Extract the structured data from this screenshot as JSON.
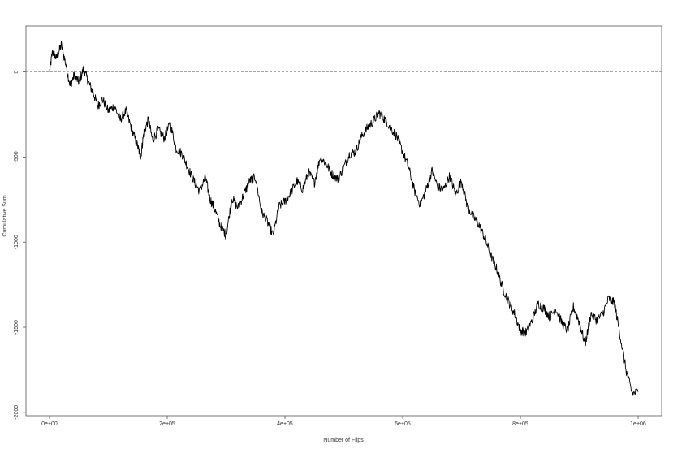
{
  "chart_data": {
    "type": "line",
    "title": "",
    "xlabel": "Number of Flips",
    "ylabel": "Cumulative Sum",
    "xlim": [
      -40000,
      1040000
    ],
    "ylim": [
      -2020,
      270
    ],
    "x_ticks": [
      0,
      200000,
      400000,
      600000,
      800000,
      1000000
    ],
    "x_tick_labels": [
      "0e+00",
      "2e+05",
      "4e+05",
      "6e+05",
      "8e+05",
      "1e+06"
    ],
    "y_ticks": [
      0,
      -500,
      -1000,
      -1500,
      -2000
    ],
    "y_tick_labels": [
      "0",
      "-500",
      "-1000",
      "-1500",
      "-2000"
    ],
    "reference_line": {
      "y": 0,
      "style": "dashed",
      "color": "#888888"
    },
    "grid": false,
    "line_color": "#000000",
    "series": [
      {
        "name": "",
        "x": [
          0,
          5000,
          12000,
          20000,
          28000,
          35000,
          42000,
          50000,
          58000,
          66000,
          74000,
          82000,
          90000,
          100000,
          110000,
          120000,
          130000,
          140000,
          150000,
          155000,
          160000,
          168000,
          175000,
          185000,
          195000,
          205000,
          215000,
          225000,
          235000,
          245000,
          255000,
          265000,
          272000,
          280000,
          290000,
          300000,
          310000,
          320000,
          330000,
          340000,
          350000,
          360000,
          370000,
          380000,
          390000,
          400000,
          410000,
          420000,
          430000,
          440000,
          450000,
          460000,
          470000,
          480000,
          490000,
          500000,
          510000,
          520000,
          530000,
          540000,
          550000,
          560000,
          570000,
          580000,
          590000,
          600000,
          610000,
          620000,
          630000,
          640000,
          650000,
          660000,
          670000,
          680000,
          690000,
          700000,
          710000,
          720000,
          730000,
          740000,
          750000,
          760000,
          770000,
          780000,
          790000,
          800000,
          810000,
          820000,
          830000,
          840000,
          850000,
          860000,
          870000,
          880000,
          890000,
          900000,
          910000,
          920000,
          930000,
          940000,
          950000,
          960000,
          970000,
          980000,
          990000,
          1000000
        ],
        "y": [
          0,
          120,
          80,
          160,
          40,
          -80,
          -20,
          -60,
          20,
          -60,
          -120,
          -200,
          -160,
          -230,
          -200,
          -280,
          -230,
          -340,
          -440,
          -500,
          -360,
          -280,
          -400,
          -340,
          -390,
          -300,
          -450,
          -480,
          -560,
          -640,
          -700,
          -620,
          -740,
          -800,
          -900,
          -960,
          -740,
          -800,
          -720,
          -640,
          -620,
          -820,
          -880,
          -960,
          -790,
          -760,
          -710,
          -640,
          -690,
          -590,
          -650,
          -500,
          -540,
          -600,
          -630,
          -560,
          -480,
          -470,
          -380,
          -330,
          -290,
          -240,
          -280,
          -330,
          -380,
          -470,
          -560,
          -700,
          -780,
          -690,
          -580,
          -680,
          -690,
          -610,
          -720,
          -640,
          -790,
          -850,
          -900,
          -980,
          -1080,
          -1160,
          -1270,
          -1350,
          -1420,
          -1520,
          -1530,
          -1460,
          -1360,
          -1390,
          -1440,
          -1390,
          -1470,
          -1520,
          -1380,
          -1470,
          -1600,
          -1420,
          -1460,
          -1420,
          -1330,
          -1360,
          -1560,
          -1760,
          -1890,
          -1880
        ]
      }
    ]
  }
}
